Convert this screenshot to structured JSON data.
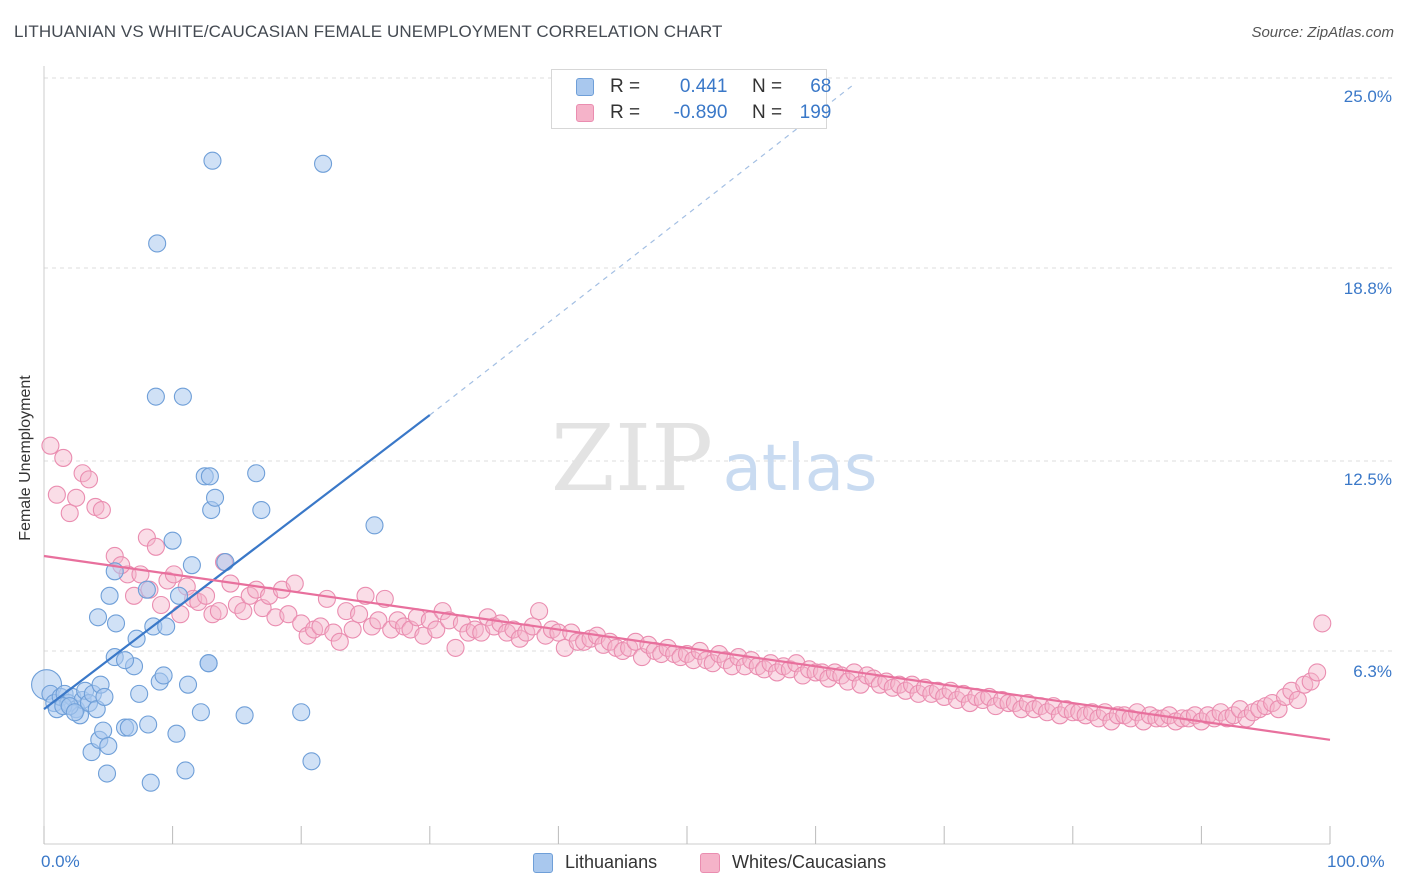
{
  "title": "LITHUANIAN VS WHITE/CAUCASIAN FEMALE UNEMPLOYMENT CORRELATION CHART",
  "source": "Source: ZipAtlas.com",
  "watermark": {
    "zip": "ZIP",
    "atlas": "atlas"
  },
  "legend": {
    "rows": [
      {
        "r_label": "R =",
        "r_value": "0.441",
        "n_label": "N =",
        "n_value": "68"
      },
      {
        "r_label": "R =",
        "r_value": "-0.890",
        "n_label": "N =",
        "n_value": "199"
      }
    ]
  },
  "colors": {
    "blue_fill": "#a9c8ee",
    "blue_stroke": "#6f9fd8",
    "blue_line": "#3a78c8",
    "pink_fill": "#f5b3c9",
    "pink_stroke": "#ea8db0",
    "pink_line": "#e8709d",
    "grid": "#dddddd",
    "axis_text": "#3a78c8"
  },
  "chart_data": {
    "type": "scatter",
    "title": "LITHUANIAN VS WHITE/CAUCASIAN FEMALE UNEMPLOYMENT CORRELATION CHART",
    "xlabel": "",
    "ylabel": "Female Unemployment",
    "xlim": [
      0,
      100
    ],
    "ylim": [
      0,
      25
    ],
    "x_tick_labels": [
      "0.0%",
      "100.0%"
    ],
    "y_ticks": [
      6.3,
      12.5,
      18.8,
      25.0
    ],
    "y_tick_labels": [
      "6.3%",
      "12.5%",
      "18.8%",
      "25.0%"
    ],
    "grid": true,
    "legend_position": "top-center",
    "series": [
      {
        "name": "Lithuanians",
        "r": 0.441,
        "n": 68,
        "trend": {
          "x0": 0,
          "y0": 4.4,
          "x1": 30,
          "y1": 14.0,
          "dashed_to_x": 63,
          "dashed_to_y": 24.8
        },
        "points": [
          [
            0.2,
            5.2
          ],
          [
            0.5,
            4.9
          ],
          [
            0.8,
            4.6
          ],
          [
            1.0,
            4.4
          ],
          [
            1.3,
            4.8
          ],
          [
            1.6,
            4.9
          ],
          [
            1.9,
            4.6
          ],
          [
            2.2,
            4.8
          ],
          [
            2.5,
            4.4
          ],
          [
            2.8,
            4.2
          ],
          [
            3.0,
            4.7
          ],
          [
            3.2,
            5.0
          ],
          [
            3.5,
            4.6
          ],
          [
            3.8,
            4.9
          ],
          [
            4.1,
            4.4
          ],
          [
            4.4,
            5.2
          ],
          [
            4.7,
            4.8
          ],
          [
            1.5,
            4.5
          ],
          [
            2.0,
            4.5
          ],
          [
            2.4,
            4.3
          ],
          [
            3.7,
            3.0
          ],
          [
            4.3,
            3.4
          ],
          [
            4.6,
            3.7
          ],
          [
            5.0,
            3.2
          ],
          [
            6.3,
            3.8
          ],
          [
            6.6,
            3.8
          ],
          [
            8.1,
            3.9
          ],
          [
            9.0,
            5.3
          ],
          [
            10.3,
            3.6
          ],
          [
            11.0,
            2.4
          ],
          [
            12.2,
            4.3
          ],
          [
            4.9,
            2.3
          ],
          [
            8.3,
            2.0
          ],
          [
            20.8,
            2.7
          ],
          [
            20.0,
            4.3
          ],
          [
            15.6,
            4.2
          ],
          [
            12.8,
            5.9
          ],
          [
            9.3,
            5.5
          ],
          [
            7.4,
            4.9
          ],
          [
            7.0,
            5.8
          ],
          [
            5.5,
            6.1
          ],
          [
            5.6,
            7.2
          ],
          [
            5.1,
            8.1
          ],
          [
            8.0,
            8.3
          ],
          [
            11.5,
            9.1
          ],
          [
            13.0,
            10.9
          ],
          [
            12.5,
            12.0
          ],
          [
            12.9,
            12.0
          ],
          [
            16.5,
            12.1
          ],
          [
            16.9,
            10.9
          ],
          [
            13.3,
            11.3
          ],
          [
            4.2,
            7.4
          ],
          [
            5.5,
            8.9
          ],
          [
            7.2,
            6.7
          ],
          [
            8.5,
            7.1
          ],
          [
            9.5,
            7.1
          ],
          [
            10.5,
            8.1
          ],
          [
            10.0,
            9.9
          ],
          [
            6.3,
            6.0
          ],
          [
            14.1,
            9.2
          ],
          [
            25.7,
            10.4
          ],
          [
            8.7,
            14.6
          ],
          [
            10.8,
            14.6
          ],
          [
            8.8,
            19.6
          ],
          [
            13.1,
            22.3
          ],
          [
            21.7,
            22.2
          ],
          [
            12.8,
            5.9
          ],
          [
            11.2,
            5.2
          ]
        ]
      },
      {
        "name": "Whites/Caucasians",
        "r": -0.89,
        "n": 199,
        "trend": {
          "x0": 0,
          "y0": 9.4,
          "x1": 100,
          "y1": 3.4
        },
        "points": [
          [
            0.5,
            13.0
          ],
          [
            1.0,
            11.4
          ],
          [
            1.5,
            12.6
          ],
          [
            2.0,
            10.8
          ],
          [
            2.5,
            11.3
          ],
          [
            3.0,
            12.1
          ],
          [
            3.5,
            11.9
          ],
          [
            4.0,
            11.0
          ],
          [
            4.5,
            10.9
          ],
          [
            5.5,
            9.4
          ],
          [
            6.5,
            8.8
          ],
          [
            6.0,
            9.1
          ],
          [
            7.0,
            8.1
          ],
          [
            7.5,
            8.8
          ],
          [
            8.0,
            10.0
          ],
          [
            8.2,
            8.3
          ],
          [
            8.7,
            9.7
          ],
          [
            9.1,
            7.8
          ],
          [
            9.6,
            8.6
          ],
          [
            10.1,
            8.8
          ],
          [
            10.6,
            7.5
          ],
          [
            11.1,
            8.4
          ],
          [
            11.6,
            8.0
          ],
          [
            12.0,
            7.9
          ],
          [
            12.6,
            8.1
          ],
          [
            13.1,
            7.5
          ],
          [
            13.6,
            7.6
          ],
          [
            14.0,
            9.2
          ],
          [
            14.5,
            8.5
          ],
          [
            15.0,
            7.8
          ],
          [
            15.5,
            7.6
          ],
          [
            16.0,
            8.1
          ],
          [
            16.5,
            8.3
          ],
          [
            17.0,
            7.7
          ],
          [
            17.5,
            8.1
          ],
          [
            18.0,
            7.4
          ],
          [
            18.5,
            8.3
          ],
          [
            19.0,
            7.5
          ],
          [
            19.5,
            8.5
          ],
          [
            20.0,
            7.2
          ],
          [
            20.5,
            6.8
          ],
          [
            21.0,
            7.0
          ],
          [
            21.5,
            7.1
          ],
          [
            22.0,
            8.0
          ],
          [
            22.5,
            6.9
          ],
          [
            23.0,
            6.6
          ],
          [
            23.5,
            7.6
          ],
          [
            24.0,
            7.0
          ],
          [
            24.5,
            7.5
          ],
          [
            25.0,
            8.1
          ],
          [
            25.5,
            7.1
          ],
          [
            26.0,
            7.3
          ],
          [
            26.5,
            8.0
          ],
          [
            27.0,
            7.0
          ],
          [
            27.5,
            7.3
          ],
          [
            28.0,
            7.1
          ],
          [
            28.5,
            7.0
          ],
          [
            29.0,
            7.4
          ],
          [
            29.5,
            6.8
          ],
          [
            30.0,
            7.3
          ],
          [
            30.5,
            7.0
          ],
          [
            31.0,
            7.6
          ],
          [
            31.5,
            7.3
          ],
          [
            32.0,
            6.4
          ],
          [
            32.5,
            7.2
          ],
          [
            33.0,
            6.9
          ],
          [
            33.5,
            7.0
          ],
          [
            34.0,
            6.9
          ],
          [
            34.5,
            7.4
          ],
          [
            35.0,
            7.1
          ],
          [
            35.5,
            7.2
          ],
          [
            36.0,
            6.9
          ],
          [
            36.5,
            7.0
          ],
          [
            37.0,
            6.7
          ],
          [
            37.5,
            6.9
          ],
          [
            38.0,
            7.1
          ],
          [
            38.5,
            7.6
          ],
          [
            39.0,
            6.8
          ],
          [
            39.5,
            7.0
          ],
          [
            40.0,
            6.9
          ],
          [
            40.5,
            6.4
          ],
          [
            41.0,
            6.9
          ],
          [
            41.5,
            6.6
          ],
          [
            42.0,
            6.6
          ],
          [
            42.5,
            6.7
          ],
          [
            43.0,
            6.8
          ],
          [
            43.5,
            6.5
          ],
          [
            44.0,
            6.6
          ],
          [
            44.5,
            6.4
          ],
          [
            45.0,
            6.3
          ],
          [
            45.5,
            6.4
          ],
          [
            46.0,
            6.6
          ],
          [
            46.5,
            6.1
          ],
          [
            47.0,
            6.5
          ],
          [
            47.5,
            6.3
          ],
          [
            48.0,
            6.2
          ],
          [
            48.5,
            6.4
          ],
          [
            49.0,
            6.2
          ],
          [
            49.5,
            6.1
          ],
          [
            50.0,
            6.2
          ],
          [
            50.5,
            6.0
          ],
          [
            51.0,
            6.3
          ],
          [
            51.5,
            6.0
          ],
          [
            52.0,
            5.9
          ],
          [
            52.5,
            6.2
          ],
          [
            53.0,
            6.0
          ],
          [
            53.5,
            5.8
          ],
          [
            54.0,
            6.1
          ],
          [
            54.5,
            5.8
          ],
          [
            55.0,
            6.0
          ],
          [
            55.5,
            5.8
          ],
          [
            56.0,
            5.7
          ],
          [
            56.5,
            5.9
          ],
          [
            57.0,
            5.6
          ],
          [
            57.5,
            5.8
          ],
          [
            58.0,
            5.7
          ],
          [
            58.5,
            5.9
          ],
          [
            59.0,
            5.5
          ],
          [
            59.5,
            5.7
          ],
          [
            60.0,
            5.6
          ],
          [
            60.5,
            5.6
          ],
          [
            61.0,
            5.4
          ],
          [
            61.5,
            5.6
          ],
          [
            62.0,
            5.5
          ],
          [
            62.5,
            5.3
          ],
          [
            63.0,
            5.6
          ],
          [
            63.5,
            5.2
          ],
          [
            64.0,
            5.5
          ],
          [
            64.5,
            5.4
          ],
          [
            65.0,
            5.2
          ],
          [
            65.5,
            5.3
          ],
          [
            66.0,
            5.1
          ],
          [
            66.5,
            5.2
          ],
          [
            67.0,
            5.0
          ],
          [
            67.5,
            5.2
          ],
          [
            68.0,
            4.9
          ],
          [
            68.5,
            5.1
          ],
          [
            69.0,
            4.9
          ],
          [
            69.5,
            5.0
          ],
          [
            70.0,
            4.8
          ],
          [
            70.5,
            5.0
          ],
          [
            71.0,
            4.7
          ],
          [
            71.5,
            4.9
          ],
          [
            72.0,
            4.6
          ],
          [
            72.5,
            4.8
          ],
          [
            73.0,
            4.7
          ],
          [
            73.5,
            4.8
          ],
          [
            74.0,
            4.5
          ],
          [
            74.5,
            4.7
          ],
          [
            75.0,
            4.6
          ],
          [
            75.5,
            4.6
          ],
          [
            76.0,
            4.4
          ],
          [
            76.5,
            4.6
          ],
          [
            77.0,
            4.4
          ],
          [
            77.5,
            4.5
          ],
          [
            78.0,
            4.3
          ],
          [
            78.5,
            4.5
          ],
          [
            79.0,
            4.2
          ],
          [
            79.5,
            4.4
          ],
          [
            80.0,
            4.3
          ],
          [
            80.5,
            4.3
          ],
          [
            81.0,
            4.2
          ],
          [
            81.5,
            4.3
          ],
          [
            82.0,
            4.1
          ],
          [
            82.5,
            4.3
          ],
          [
            83.0,
            4.0
          ],
          [
            83.5,
            4.2
          ],
          [
            84.0,
            4.2
          ],
          [
            84.5,
            4.1
          ],
          [
            85.0,
            4.3
          ],
          [
            85.5,
            4.0
          ],
          [
            86.0,
            4.2
          ],
          [
            86.5,
            4.1
          ],
          [
            87.0,
            4.1
          ],
          [
            87.5,
            4.2
          ],
          [
            88.0,
            4.0
          ],
          [
            88.5,
            4.1
          ],
          [
            89.0,
            4.1
          ],
          [
            89.5,
            4.2
          ],
          [
            90.0,
            4.0
          ],
          [
            90.5,
            4.2
          ],
          [
            91.0,
            4.1
          ],
          [
            91.5,
            4.3
          ],
          [
            92.0,
            4.1
          ],
          [
            92.5,
            4.2
          ],
          [
            93.0,
            4.4
          ],
          [
            93.5,
            4.1
          ],
          [
            94.0,
            4.3
          ],
          [
            94.5,
            4.4
          ],
          [
            95.0,
            4.5
          ],
          [
            95.5,
            4.6
          ],
          [
            96.0,
            4.4
          ],
          [
            96.5,
            4.8
          ],
          [
            97.0,
            5.0
          ],
          [
            97.5,
            4.7
          ],
          [
            98.0,
            5.2
          ],
          [
            98.5,
            5.3
          ],
          [
            99.0,
            5.6
          ],
          [
            99.4,
            7.2
          ]
        ]
      }
    ]
  }
}
